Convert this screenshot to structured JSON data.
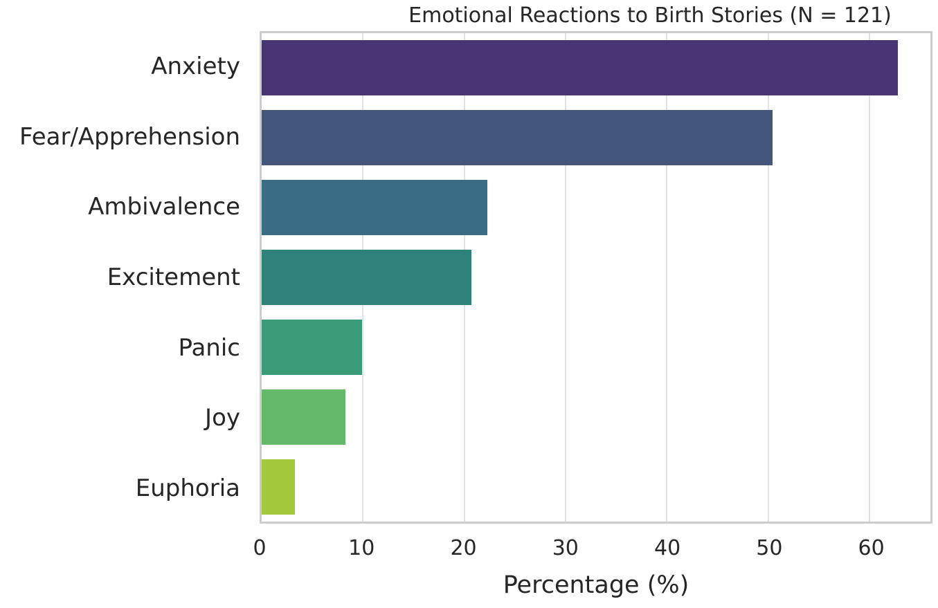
{
  "chart_data": {
    "type": "bar",
    "orientation": "horizontal",
    "title": "Emotional Reactions to Birth Stories (N = 121)",
    "xlabel": "Percentage (%)",
    "ylabel": "",
    "categories": [
      "Anxiety",
      "Fear/Apprehension",
      "Ambivalence",
      "Excitement",
      "Panic",
      "Joy",
      "Euphoria"
    ],
    "values": [
      62.8,
      50.4,
      22.3,
      20.7,
      9.9,
      8.3,
      3.3
    ],
    "bar_colors": [
      "#473574",
      "#45567d",
      "#3a6d85",
      "#2e827a",
      "#3a9c77",
      "#64ba69",
      "#a3c93d"
    ],
    "xlim": [
      0,
      66
    ],
    "x_ticks": [
      0,
      10,
      20,
      30,
      40,
      50,
      60
    ],
    "grid": "vertical",
    "legend": "none",
    "styles": {
      "background": "#ffffff",
      "axes_frame_color": "#cccccc",
      "gridline_color": "#e2e2e2",
      "text_color": "#262626"
    }
  }
}
